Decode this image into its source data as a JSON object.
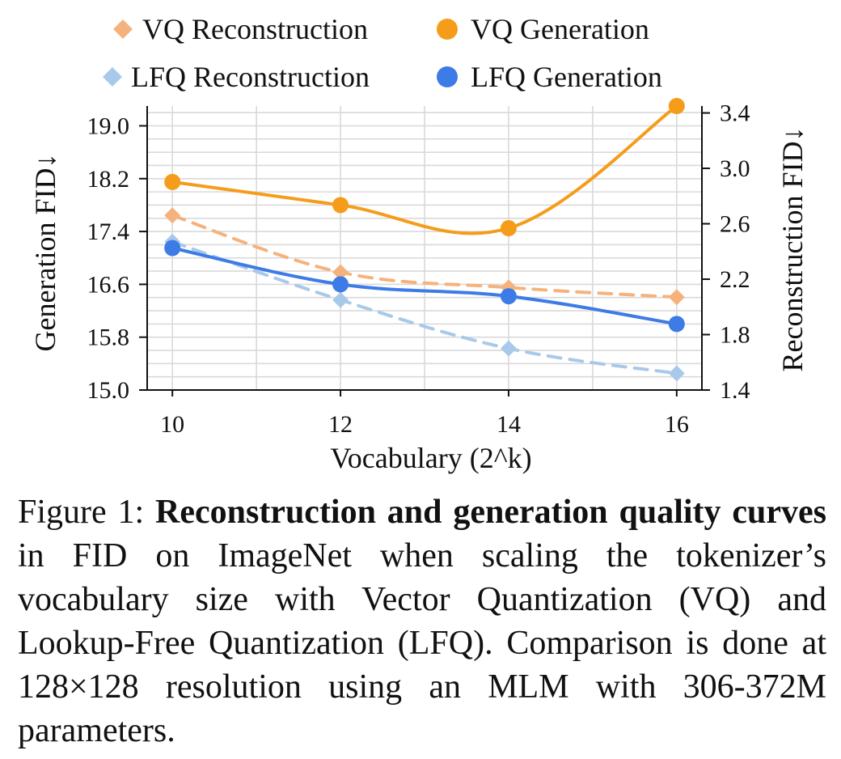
{
  "chart_data": {
    "type": "line",
    "xlabel": "Vocabulary (2^k)",
    "ylabel_left": "Generation FID↓",
    "ylabel_right": "Reconstruction FID↓",
    "x": [
      10,
      12,
      14,
      16
    ],
    "x_ticks": [
      "10",
      "12",
      "14",
      "16"
    ],
    "xlim": [
      9.7,
      16.3
    ],
    "ylim_left": [
      15.0,
      19.3
    ],
    "ylim_right": [
      1.4,
      3.45
    ],
    "y_ticks_left": [
      "15.0",
      "15.8",
      "16.6",
      "17.4",
      "18.2",
      "19.0"
    ],
    "y_ticks_right": [
      "1.4",
      "1.8",
      "2.2",
      "2.6",
      "3.0",
      "3.4"
    ],
    "grid": true,
    "legend_position": "top",
    "series": [
      {
        "name": "VQ Reconstruction",
        "axis": "right",
        "style": "dashed",
        "marker": "diamond",
        "color": "#f6b27c",
        "values": [
          2.66,
          2.25,
          2.14,
          2.07
        ]
      },
      {
        "name": "VQ Generation",
        "axis": "left",
        "style": "solid",
        "marker": "circle",
        "color": "#f59d1a",
        "values": [
          18.15,
          17.8,
          17.45,
          19.3
        ]
      },
      {
        "name": "LFQ Reconstruction",
        "axis": "right",
        "style": "dashed",
        "marker": "diamond",
        "color": "#a9c9ea",
        "values": [
          2.47,
          2.05,
          1.7,
          1.52
        ]
      },
      {
        "name": "LFQ Generation",
        "axis": "left",
        "style": "solid",
        "marker": "circle",
        "color": "#3d7be6",
        "values": [
          17.15,
          16.6,
          16.42,
          16.0
        ]
      }
    ]
  },
  "caption": {
    "prefix": "Figure 1: ",
    "bold": "Reconstruction and generation quality curves",
    "rest": " in FID on ImageNet when scaling the tokenizer’s vocabulary size with Vector Quantization (VQ) and Lookup-Free Quantization (LFQ). Comparison is done at 128×128 resolution using an MLM with 306-372M parameters."
  }
}
